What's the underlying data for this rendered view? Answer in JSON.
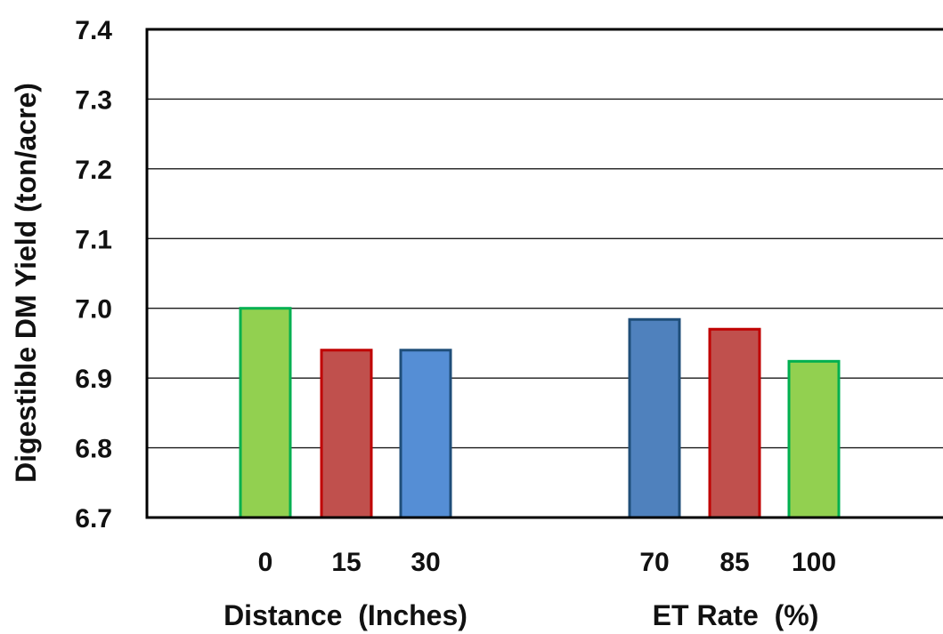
{
  "chart_data": {
    "type": "bar",
    "ylabel": "Digestible DM Yield (ton/acre)",
    "ylim": [
      6.7,
      7.4
    ],
    "yticks": [
      "6.7",
      "6.8",
      "6.9",
      "7.0",
      "7.1",
      "7.2",
      "7.3",
      "7.4"
    ],
    "grid": true,
    "legend": "none",
    "groups": [
      {
        "xlabel": "Distance  (Inches)",
        "categories": [
          "0",
          "15",
          "30"
        ],
        "values": [
          7.0,
          6.94,
          6.94
        ],
        "fill_colors": [
          "#92d050",
          "#c0504d",
          "#558ed5"
        ],
        "stroke_colors": [
          "#00b050",
          "#c00000",
          "#1f4e79"
        ]
      },
      {
        "xlabel": "ET Rate  (%)",
        "categories": [
          "70",
          "85",
          "100"
        ],
        "values": [
          6.984,
          6.97,
          6.924
        ],
        "fill_colors": [
          "#4f81bd",
          "#c0504d",
          "#92d050"
        ],
        "stroke_colors": [
          "#1f4e79",
          "#c00000",
          "#00b050"
        ]
      }
    ]
  }
}
